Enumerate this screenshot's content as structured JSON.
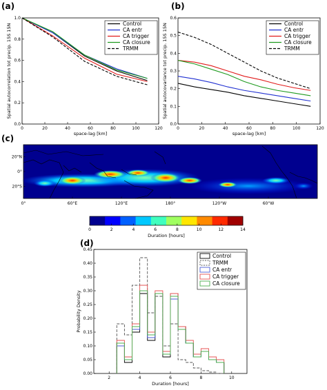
{
  "chart_data": [
    {
      "panel": "(a)",
      "type": "line",
      "xlabel": "space-lag [km]",
      "ylabel": "Spatial autocorrelation tot precip. 15S 15N",
      "xlim": [
        0,
        120
      ],
      "ylim": [
        0.0,
        1.0
      ],
      "xticks": [
        "0",
        "20",
        "40",
        "60",
        "80",
        "100",
        "120"
      ],
      "yticks": [
        "0.0",
        "0.2",
        "0.4",
        "0.6",
        "0.8",
        "1.0"
      ],
      "grid": false,
      "legend": "top-right",
      "x": [
        0,
        27,
        55,
        83,
        110
      ],
      "series": [
        {
          "name": "Control",
          "color": "#000000",
          "dash": "",
          "values": [
            1.0,
            0.86,
            0.64,
            0.5,
            0.41
          ]
        },
        {
          "name": "CA entr",
          "color": "#1f2fd1",
          "dash": "",
          "values": [
            1.0,
            0.86,
            0.65,
            0.52,
            0.43
          ]
        },
        {
          "name": "CA trigger",
          "color": "#e11a1a",
          "dash": "",
          "values": [
            1.0,
            0.83,
            0.62,
            0.47,
            0.4
          ]
        },
        {
          "name": "CA closure",
          "color": "#1d9a1d",
          "dash": "",
          "values": [
            1.0,
            0.87,
            0.65,
            0.51,
            0.43
          ]
        },
        {
          "name": "TRMM",
          "color": "#000000",
          "dash": "4,2",
          "values": [
            1.0,
            0.82,
            0.59,
            0.45,
            0.37
          ]
        }
      ]
    },
    {
      "panel": "(b)",
      "type": "line",
      "xlabel": "space-lag [km]",
      "ylabel": "Spatial autocovariance tot precip. 15S 15N",
      "xlim": [
        0,
        120
      ],
      "ylim": [
        0.0,
        0.6
      ],
      "xticks": [
        "0",
        "20",
        "40",
        "60",
        "80",
        "100",
        "120"
      ],
      "yticks": [
        "0.0",
        "0.1",
        "0.2",
        "0.3",
        "0.4",
        "0.5",
        "0.6"
      ],
      "grid": false,
      "legend": "top-right",
      "x": [
        0,
        14,
        28,
        42,
        56,
        70,
        84,
        98,
        112
      ],
      "series": [
        {
          "name": "Control",
          "color": "#000000",
          "dash": "",
          "values": [
            0.23,
            0.21,
            0.195,
            0.18,
            0.16,
            0.145,
            0.13,
            0.115,
            0.1
          ]
        },
        {
          "name": "CA entr",
          "color": "#1f2fd1",
          "dash": "",
          "values": [
            0.27,
            0.255,
            0.235,
            0.21,
            0.19,
            0.175,
            0.16,
            0.145,
            0.13
          ]
        },
        {
          "name": "CA trigger",
          "color": "#e11a1a",
          "dash": "",
          "values": [
            0.36,
            0.35,
            0.33,
            0.3,
            0.27,
            0.25,
            0.225,
            0.205,
            0.19
          ]
        },
        {
          "name": "CA closure",
          "color": "#1d9a1d",
          "dash": "",
          "values": [
            0.36,
            0.34,
            0.31,
            0.28,
            0.24,
            0.21,
            0.19,
            0.175,
            0.16
          ]
        },
        {
          "name": "TRMM",
          "color": "#000000",
          "dash": "4,2",
          "values": [
            0.52,
            0.49,
            0.45,
            0.4,
            0.35,
            0.3,
            0.26,
            0.23,
            0.2
          ]
        }
      ]
    },
    {
      "panel": "(c)",
      "type": "heatmap",
      "xticks": [
        "0°",
        "60°E",
        "120°E",
        "180°",
        "120°W",
        "60°W"
      ],
      "yticks": [
        "20°N",
        "0°",
        "20°S"
      ],
      "colorbar_label": "Duration [hours]",
      "colorbar_ticks": [
        "0",
        "2",
        "4",
        "6",
        "8",
        "10",
        "12",
        "14"
      ],
      "colorbar_range": [
        0,
        14
      ],
      "colorbar_colors": [
        "#00008f",
        "#0000ff",
        "#0060ff",
        "#00c8ff",
        "#40ffbf",
        "#a0ff60",
        "#ffe600",
        "#ff8a00",
        "#ff2a00",
        "#a00000"
      ]
    },
    {
      "panel": "(d)",
      "type": "histogram",
      "xlabel": "Duration [hours]",
      "ylabel": "Probability Density",
      "xlim": [
        1,
        11
      ],
      "ylim": [
        0.0,
        0.45
      ],
      "xticks": [
        "2",
        "4",
        "6",
        "8",
        "10"
      ],
      "yticks": [
        "0.00",
        "0.05",
        "0.10",
        "0.15",
        "0.20",
        "0.25",
        "0.30",
        "0.35",
        "0.40",
        "0.45"
      ],
      "legend": "top-right",
      "bin_edges": [
        2.5,
        3.0,
        3.5,
        4.0,
        4.5,
        5.0,
        5.5,
        6.0,
        6.5,
        7.0,
        7.5,
        8.0,
        8.5,
        9.0,
        9.5
      ],
      "series": [
        {
          "name": "Control",
          "color": "#000000",
          "dash": "",
          "values": [
            0.11,
            0.04,
            0.15,
            0.29,
            0.12,
            0.29,
            0.06,
            0.29,
            0.17,
            0.11,
            0.06,
            0.08,
            0.05,
            0.04
          ]
        },
        {
          "name": "TRMM",
          "color": "#555555",
          "dash": "4,2",
          "values": [
            0.18,
            0.14,
            0.32,
            0.42,
            0.22,
            0.28,
            0.1,
            0.18,
            0.05,
            0.04,
            0.02,
            0.01,
            0.005,
            0.0
          ]
        },
        {
          "name": "CA entr",
          "color": "#4b5cd6",
          "dash": "",
          "values": [
            0.1,
            0.05,
            0.16,
            0.3,
            0.13,
            0.29,
            0.07,
            0.27,
            0.16,
            0.11,
            0.06,
            0.08,
            0.05,
            0.04
          ]
        },
        {
          "name": "CA trigger",
          "color": "#e55353",
          "dash": "",
          "values": [
            0.12,
            0.06,
            0.18,
            0.32,
            0.15,
            0.3,
            0.08,
            0.29,
            0.17,
            0.12,
            0.07,
            0.09,
            0.06,
            0.05
          ]
        },
        {
          "name": "CA closure",
          "color": "#4caf50",
          "dash": "",
          "values": [
            0.11,
            0.05,
            0.17,
            0.3,
            0.14,
            0.29,
            0.07,
            0.28,
            0.16,
            0.11,
            0.06,
            0.08,
            0.05,
            0.04
          ]
        }
      ]
    }
  ]
}
